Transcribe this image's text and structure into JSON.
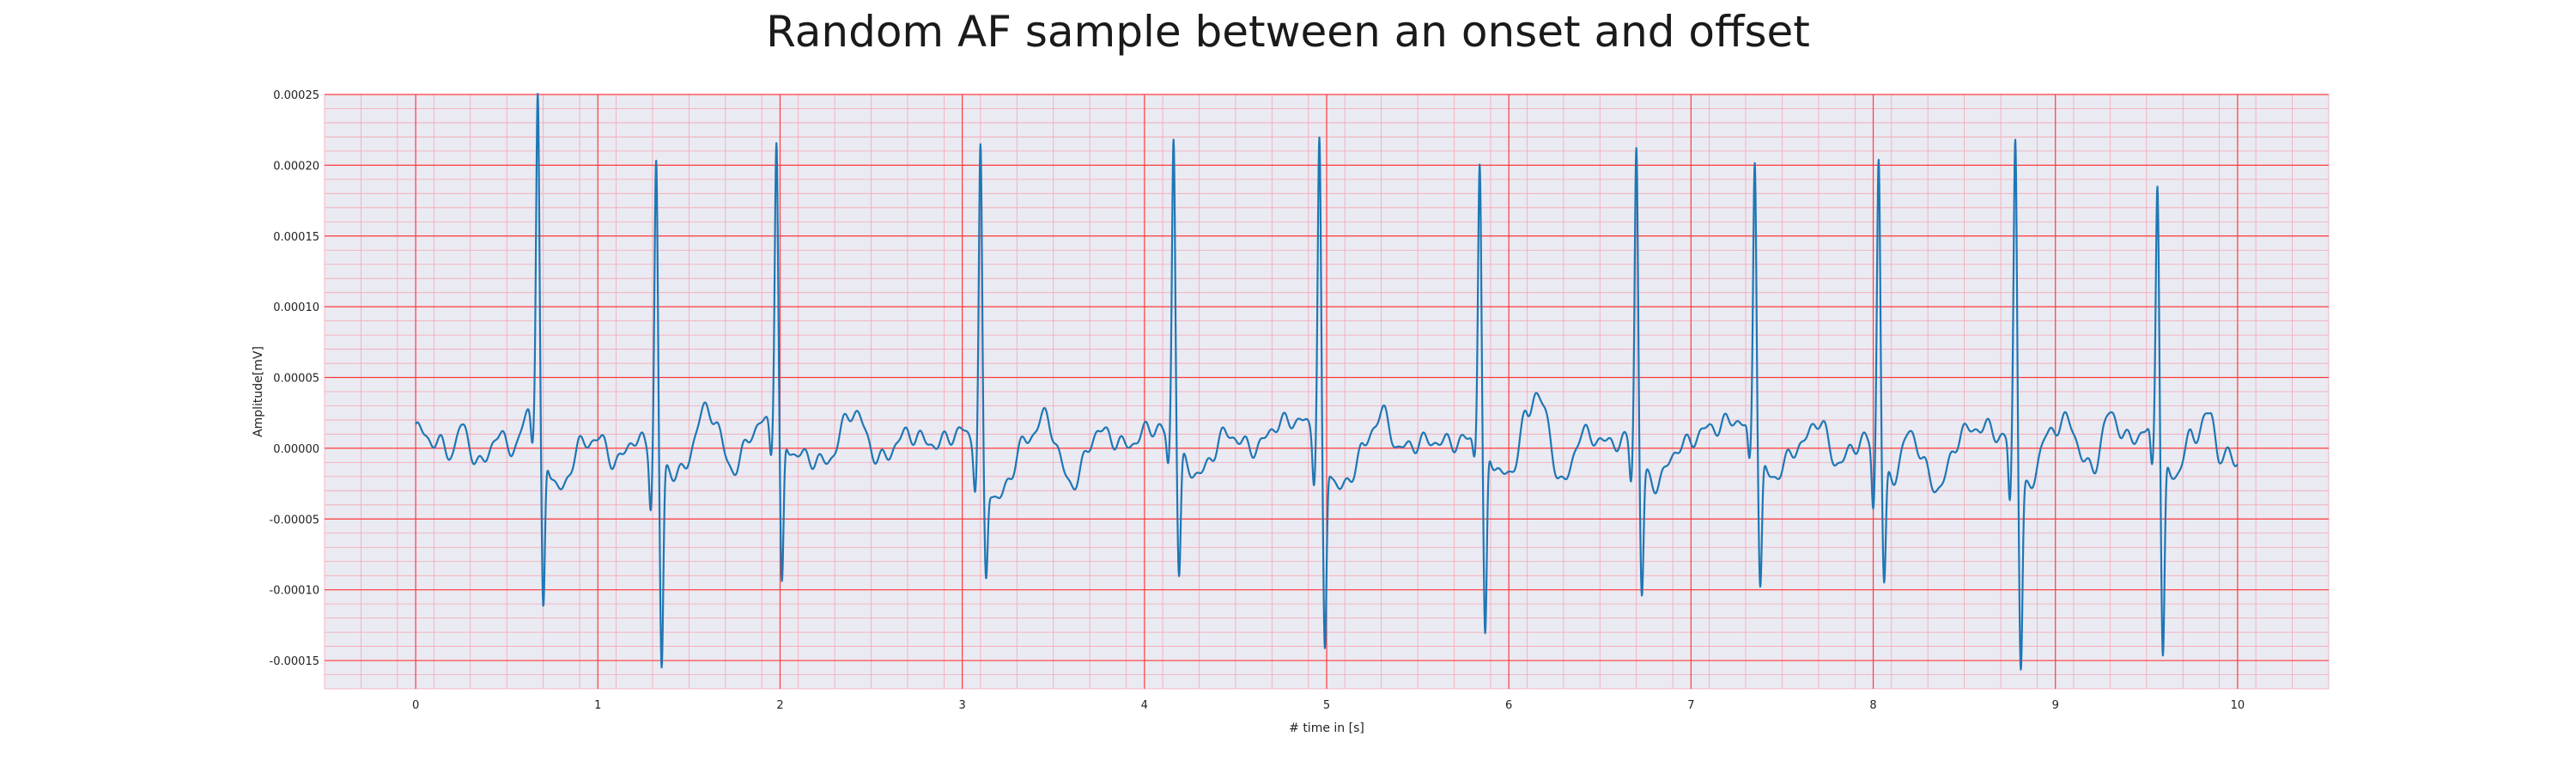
{
  "chart_data": {
    "type": "line",
    "title": "Random AF sample between an onset and offset",
    "xlabel": "# time in [s]",
    "ylabel": "Amplitude[mV]",
    "xlim": [
      -0.5,
      10.5
    ],
    "ylim": [
      -0.00017,
      0.00025
    ],
    "x_ticks": [
      0,
      1,
      2,
      3,
      4,
      5,
      6,
      7,
      8,
      9,
      10
    ],
    "x_tick_labels": [
      "0",
      "1",
      "2",
      "3",
      "4",
      "5",
      "6",
      "7",
      "8",
      "9",
      "10"
    ],
    "y_ticks": [
      -0.00015,
      -0.0001,
      -5e-05,
      0,
      5e-05,
      0.0001,
      0.00015,
      0.0002,
      0.00025
    ],
    "y_tick_labels": [
      "-0.00015",
      "-0.00010",
      "-0.00005",
      "0.00000",
      "0.00005",
      "0.00010",
      "0.00015",
      "0.00020",
      "0.00025"
    ],
    "grid": true,
    "minor_grid": true,
    "background_color": "#eaeaf2",
    "major_grid_color": "#ff3b3b",
    "minor_grid_color": "#f4a6b4",
    "line_color": "#1f77b4",
    "series": [
      {
        "x_start": 0.0,
        "x_end": 10.0,
        "baseline_points": [
          [
            0.0,
            1.4e-05
          ],
          [
            0.1,
            5e-06
          ],
          [
            0.2,
            -3e-06
          ],
          [
            0.25,
            1.5e-05
          ],
          [
            0.35,
            -1.2e-05
          ],
          [
            0.45,
            8e-06
          ],
          [
            0.55,
            0.0
          ],
          [
            0.62,
            2.8e-05
          ],
          [
            0.8,
            -3e-05
          ],
          [
            0.9,
            2e-06
          ],
          [
            1.0,
            7e-06
          ],
          [
            1.1,
            -1e-05
          ],
          [
            1.2,
            6e-06
          ],
          [
            1.45,
            -1.8e-05
          ],
          [
            1.6,
            2.8e-05
          ],
          [
            1.75,
            -1.5e-05
          ],
          [
            1.85,
            1.2e-05
          ],
          [
            1.93,
            2e-05
          ],
          [
            2.1,
            -5e-06
          ],
          [
            2.25,
            -1e-05
          ],
          [
            2.4,
            2.6e-05
          ],
          [
            2.55,
            -8e-06
          ],
          [
            2.7,
            1e-05
          ],
          [
            2.85,
            3e-06
          ],
          [
            3.0,
            1.2e-05
          ],
          [
            3.2,
            -3.5e-05
          ],
          [
            3.35,
            5e-06
          ],
          [
            3.45,
            2.2e-05
          ],
          [
            3.6,
            -2.5e-05
          ],
          [
            3.75,
            1.2e-05
          ],
          [
            3.9,
            2e-06
          ],
          [
            4.05,
            1.5e-05
          ],
          [
            4.3,
            -1.8e-05
          ],
          [
            4.45,
            1e-05
          ],
          [
            4.6,
            0.0
          ],
          [
            4.75,
            1.8e-05
          ],
          [
            4.85,
            2e-05
          ],
          [
            5.1,
            -2.8e-05
          ],
          [
            5.2,
            0.0
          ],
          [
            5.3,
            2.5e-05
          ],
          [
            5.4,
            0.0
          ],
          [
            5.55,
            5e-06
          ],
          [
            5.7,
            4e-06
          ],
          [
            5.8,
            7e-06
          ],
          [
            6.0,
            -2e-05
          ],
          [
            6.1,
            2.2e-05
          ],
          [
            6.15,
            4e-05
          ],
          [
            6.3,
            -2.5e-05
          ],
          [
            6.4,
            1e-05
          ],
          [
            6.55,
            4e-06
          ],
          [
            6.65,
            5e-06
          ],
          [
            6.8,
            -2.5e-05
          ],
          [
            6.95,
            2e-06
          ],
          [
            7.1,
            1.4e-05
          ],
          [
            7.25,
            2e-05
          ],
          [
            7.45,
            -2e-05
          ],
          [
            7.6,
            2e-06
          ],
          [
            7.7,
            2e-05
          ],
          [
            7.8,
            -1e-05
          ],
          [
            7.95,
            6e-06
          ],
          [
            8.1,
            -2.2e-05
          ],
          [
            8.2,
            1e-05
          ],
          [
            8.35,
            -2.8e-05
          ],
          [
            8.5,
            1.2e-05
          ],
          [
            8.6,
            1.5e-05
          ],
          [
            8.75,
            6e-06
          ],
          [
            8.85,
            -3e-05
          ],
          [
            8.95,
            8e-06
          ],
          [
            9.05,
            2e-05
          ],
          [
            9.2,
            -1.5e-05
          ],
          [
            9.3,
            2.4e-05
          ],
          [
            9.4,
            6e-06
          ],
          [
            9.5,
            1.2e-05
          ],
          [
            9.65,
            -2e-05
          ],
          [
            9.75,
            8e-06
          ],
          [
            9.85,
            2.4e-05
          ],
          [
            9.9,
            -5e-06
          ],
          [
            10.0,
            -8e-06
          ]
        ],
        "qrs_complexes": [
          {
            "t": 0.67,
            "q": -2e-05,
            "r": 0.000233,
            "s": -0.000122
          },
          {
            "t": 1.32,
            "q": -3.8e-05,
            "r": 0.000207,
            "s": -0.000147
          },
          {
            "t": 1.98,
            "q": -2.2e-05,
            "r": 0.000204,
            "s": -0.00011
          },
          {
            "t": 3.1,
            "q": -2.5e-05,
            "r": 0.000222,
            "s": -7.2e-05
          },
          {
            "t": 4.16,
            "q": -2e-05,
            "r": 0.00022,
            "s": -8.5e-05
          },
          {
            "t": 4.96,
            "q": -3e-05,
            "r": 0.000219,
            "s": -0.000138
          },
          {
            "t": 5.84,
            "q": -1.2e-05,
            "r": 0.0002,
            "s": -0.000138
          },
          {
            "t": 6.7,
            "q": -2.5e-05,
            "r": 0.000216,
            "s": -9.2e-05
          },
          {
            "t": 7.35,
            "q": -2.2e-05,
            "r": 0.000208,
            "s": -9e-05
          },
          {
            "t": 8.03,
            "q": -4.2e-05,
            "r": 0.000217,
            "s": -8e-05
          },
          {
            "t": 8.78,
            "q": -4.5e-05,
            "r": 0.000221,
            "s": -0.000135
          },
          {
            "t": 9.56,
            "q": -2.5e-05,
            "r": 0.000191,
            "s": -0.00014
          }
        ]
      }
    ]
  }
}
